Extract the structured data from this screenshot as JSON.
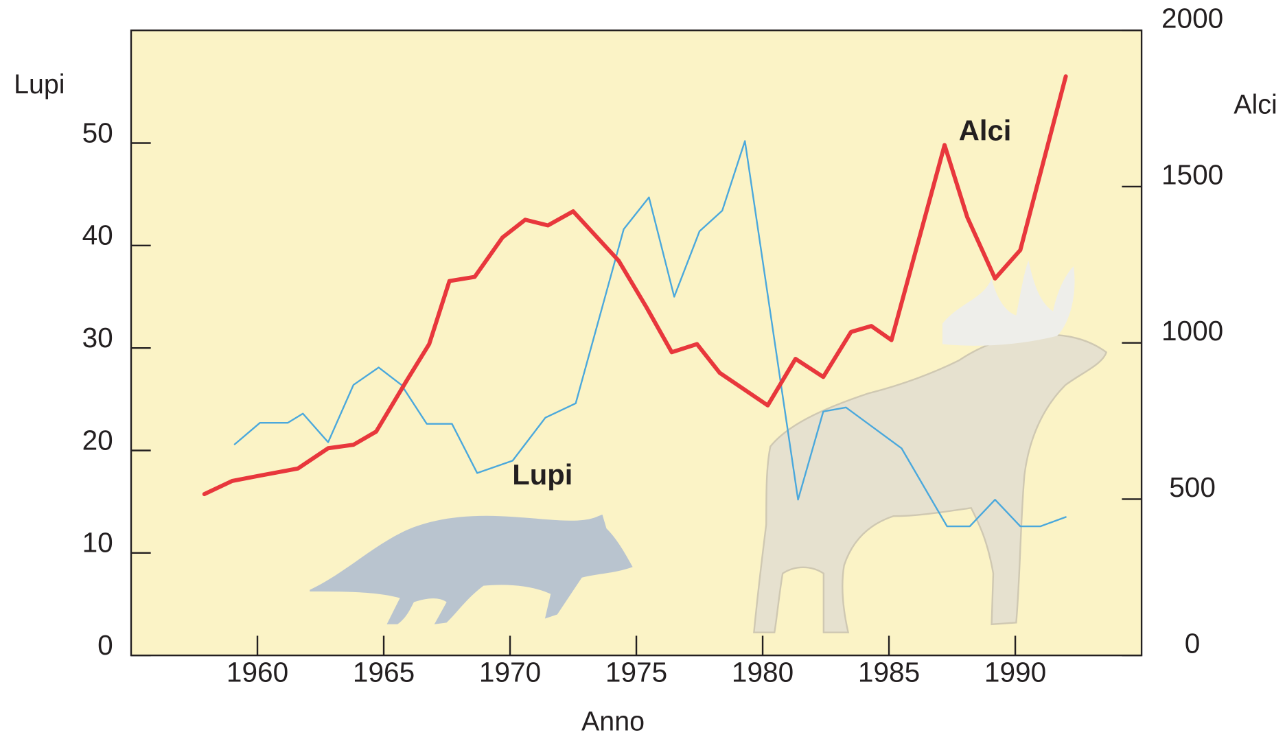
{
  "chart_data": {
    "type": "line",
    "x_label": "Anno",
    "y_label": "Lupi",
    "y2_label": "Alci",
    "xlim": [
      1955,
      1995
    ],
    "xticks": [
      1960,
      1965,
      1970,
      1975,
      1980,
      1985,
      1990
    ],
    "ylim": [
      0,
      61
    ],
    "yticks": [
      0,
      10,
      20,
      30,
      40,
      50
    ],
    "y2lim": [
      0,
      2000
    ],
    "y2ticks": [
      0,
      500,
      1000,
      1500,
      2000
    ],
    "series": [
      {
        "name": "Lupi",
        "color": "#4aa8dc",
        "x": [
          1959.1,
          1960.1,
          1961.2,
          1961.8,
          1962.8,
          1963.8,
          1964.8,
          1965.7,
          1966.7,
          1967.7,
          1968.7,
          1970.1,
          1971.4,
          1972.6,
          1974.5,
          1975.5,
          1976.5,
          1977.5,
          1978.4,
          1979.3,
          1981.4,
          1982.4,
          1983.3,
          1985.5,
          1987.3,
          1988.2,
          1989.2,
          1990.2,
          1991.0,
          1992.0
        ],
        "values": [
          20.6,
          22.7,
          22.7,
          23.6,
          20.8,
          26.4,
          28.1,
          26.4,
          22.6,
          22.6,
          17.8,
          19,
          23.2,
          24.6,
          41.6,
          44.7,
          35,
          41.4,
          43.4,
          50.2,
          15.2,
          23.8,
          24.2,
          20.2,
          12.6,
          12.6,
          15.2,
          12.6,
          12.6,
          13.5
        ]
      },
      {
        "name": "Alci",
        "color": "#e8373c",
        "axis": "y2",
        "x": [
          1957.9,
          1959.0,
          1960.2,
          1961.6,
          1962.8,
          1963.8,
          1964.7,
          1965.9,
          1966.8,
          1967.6,
          1968.6,
          1969.7,
          1970.6,
          1971.5,
          1972.5,
          1974.3,
          1975.4,
          1976.4,
          1977.4,
          1978.3,
          1980.2,
          1981.3,
          1982.4,
          1983.5,
          1984.3,
          1985.1,
          1987.2,
          1988.1,
          1989.2,
          1990.2,
          1992.0
        ],
        "values": [
          516,
          558,
          577,
          598,
          663,
          674,
          716,
          878,
          996,
          1198,
          1211,
          1337,
          1394,
          1376,
          1421,
          1263,
          1114,
          970,
          996,
          904,
          800,
          949,
          891,
          1035,
          1054,
          1009,
          1633,
          1402,
          1206,
          1297,
          1853
        ]
      }
    ]
  }
}
